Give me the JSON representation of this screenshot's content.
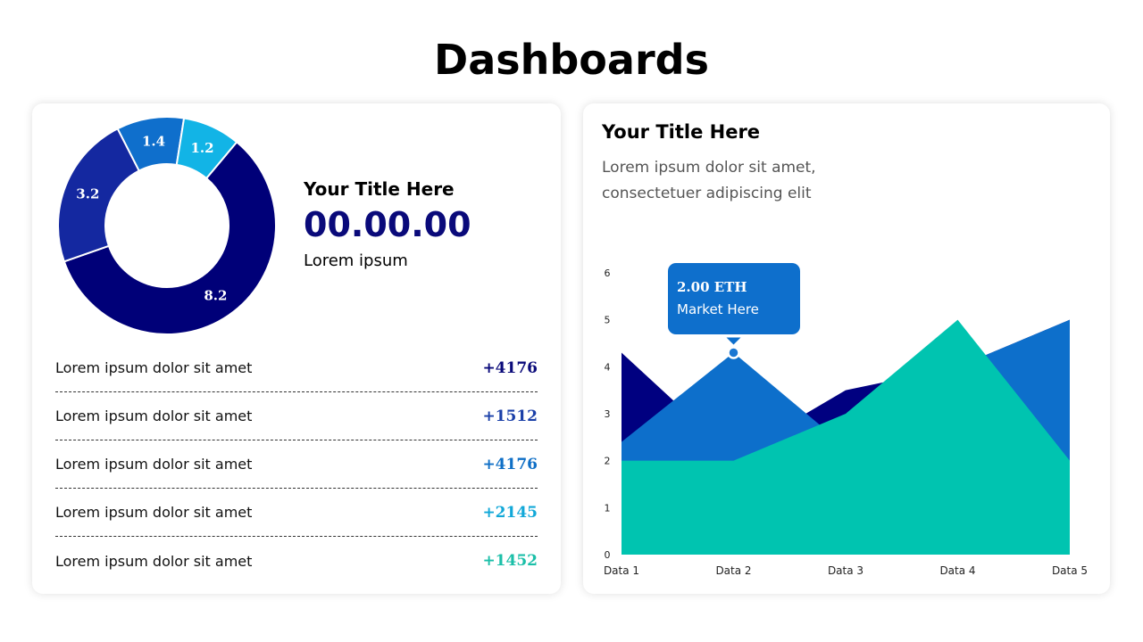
{
  "page": {
    "title": "Dashboards"
  },
  "left_card": {
    "kpi_title": "Your Title Here",
    "kpi_value": "00.00.00",
    "kpi_sub": "Lorem ipsum",
    "stats": [
      {
        "label": "Lorem ipsum dolor sit amet",
        "value": "+4176",
        "color": "#0a0a7a"
      },
      {
        "label": "Lorem ipsum dolor sit amet",
        "value": "+1512",
        "color": "#1a3fa8"
      },
      {
        "label": "Lorem ipsum dolor sit amet",
        "value": "+4176",
        "color": "#0f6fc6"
      },
      {
        "label": "Lorem ipsum dolor sit amet",
        "value": "+2145",
        "color": "#12a8d8"
      },
      {
        "label": "Lorem ipsum dolor sit amet",
        "value": "+1452",
        "color": "#1bbfa8"
      }
    ]
  },
  "right_card": {
    "title": "Your Title Here",
    "description": "Lorem ipsum dolor sit amet, consectetuer adipiscing elit",
    "tooltip": {
      "title": "2.00 ETH",
      "subtitle": "Market Here"
    }
  },
  "chart_data": [
    {
      "type": "pie",
      "categories": [
        "1.4",
        "1.2",
        "8.2",
        "3.2"
      ],
      "values": [
        1.4,
        1.2,
        8.2,
        3.2
      ],
      "labels": [
        "1.4",
        "1.2",
        "8.2",
        "3.2"
      ],
      "colors": [
        "#0f6fcc",
        "#12b4e6",
        "#000078",
        "#1428a0"
      ],
      "title": "",
      "donut": true
    },
    {
      "type": "area",
      "x": [
        "Data 1",
        "Data 2",
        "Data 3",
        "Data 4",
        "Data 5"
      ],
      "series": [
        {
          "values": [
            4.3,
            2.1,
            3.5,
            4.0,
            5.0
          ],
          "color": "#000080"
        },
        {
          "values": [
            2.4,
            4.3,
            2.3,
            4.0,
            5.0
          ],
          "color": "#0d6fcb"
        },
        {
          "values": [
            2.0,
            2.0,
            3.0,
            5.0,
            2.0
          ],
          "color": "#00c4b0"
        }
      ],
      "ylim": [
        0,
        6
      ],
      "yticks": [
        0,
        1,
        2,
        3,
        4,
        5,
        6
      ],
      "highlight": {
        "x": "Data 2",
        "y": 4.3
      },
      "grid": false,
      "title": "",
      "xlabel": "",
      "ylabel": ""
    }
  ]
}
